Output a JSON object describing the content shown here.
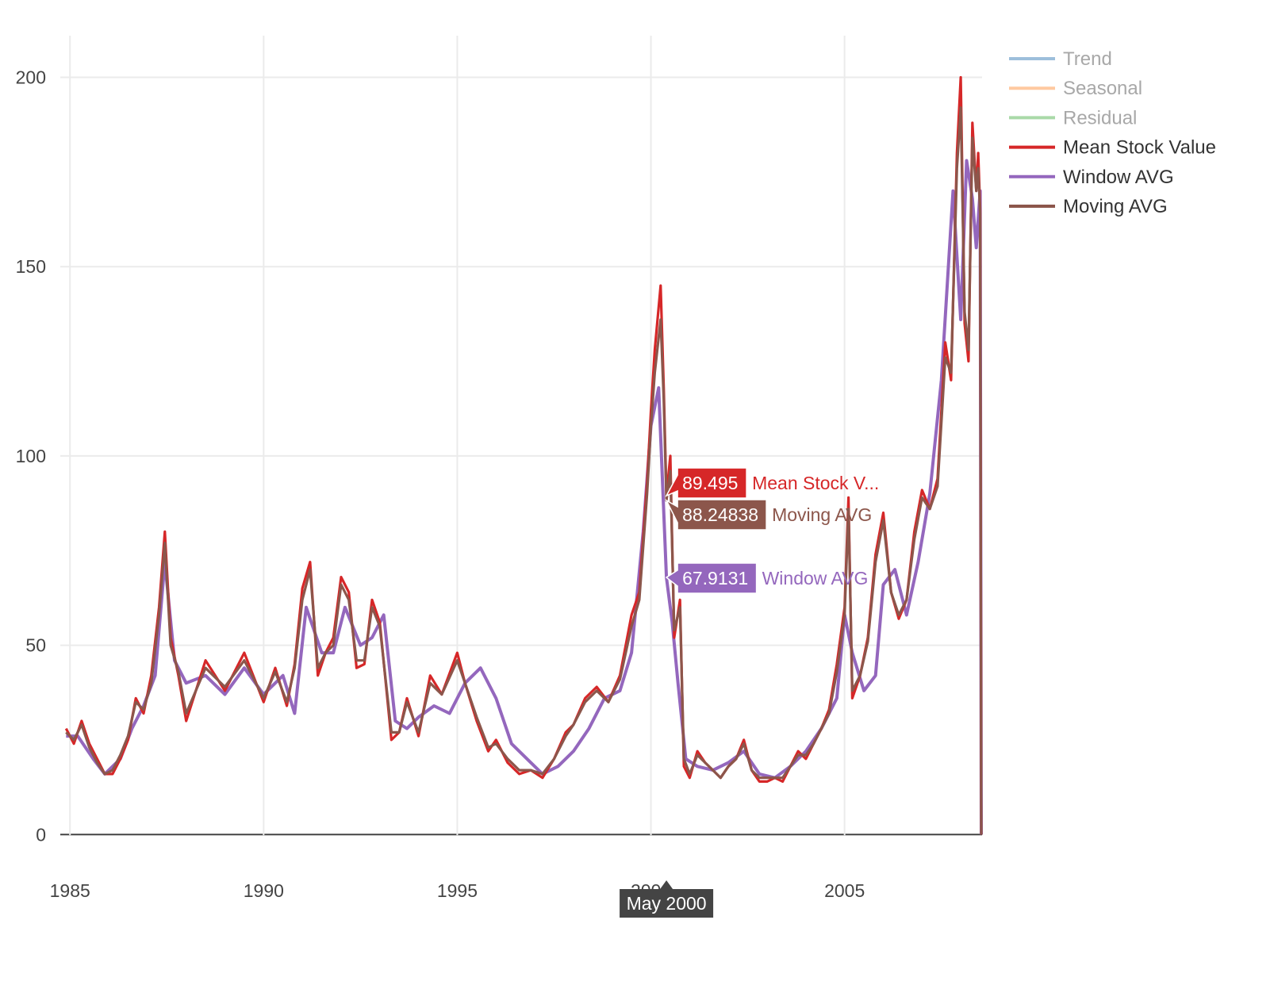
{
  "chart_data": {
    "type": "line",
    "x_ticks": [
      "1985",
      "1990",
      "1995",
      "2000",
      "2005"
    ],
    "y_ticks": [
      0,
      50,
      100,
      150,
      200
    ],
    "xlim": [
      1984.75,
      2008.55
    ],
    "ylim": [
      -10,
      211
    ],
    "grid": true,
    "legend_position": "top-right",
    "legend": [
      {
        "name": "Trend",
        "color": "#9dbfdb",
        "dimmed": true
      },
      {
        "name": "Seasonal",
        "color": "#ffc9a0",
        "dimmed": true
      },
      {
        "name": "Residual",
        "color": "#a9d9a8",
        "dimmed": true
      },
      {
        "name": "Mean Stock Value",
        "color": "#d62728",
        "dimmed": false
      },
      {
        "name": "Window AVG",
        "color": "#9467bd",
        "dimmed": false
      },
      {
        "name": "Moving AVG",
        "color": "#8c564b",
        "dimmed": false
      }
    ],
    "series": [
      {
        "name": "Mean Stock Value",
        "color": "#d62728",
        "x": [
          1984.9,
          1985.1,
          1985.3,
          1985.5,
          1985.7,
          1985.9,
          1986.1,
          1986.3,
          1986.5,
          1986.7,
          1986.9,
          1987.1,
          1987.3,
          1987.45,
          1987.6,
          1987.8,
          1988.0,
          1988.5,
          1989.0,
          1989.5,
          1990.0,
          1990.3,
          1990.6,
          1990.8,
          1991.0,
          1991.2,
          1991.4,
          1991.6,
          1991.8,
          1992.0,
          1992.2,
          1992.4,
          1992.6,
          1992.8,
          1993.0,
          1993.3,
          1993.5,
          1993.7,
          1994.0,
          1994.3,
          1994.6,
          1995.0,
          1995.2,
          1995.5,
          1995.8,
          1996.0,
          1996.3,
          1996.6,
          1996.9,
          1997.2,
          1997.5,
          1997.8,
          1998.0,
          1998.3,
          1998.6,
          1998.9,
          1999.2,
          1999.5,
          1999.7,
          1999.9,
          2000.0,
          2000.1,
          2000.25,
          2000.33,
          2000.4,
          2000.5,
          2000.6,
          2000.75,
          2000.85,
          2001.0,
          2001.2,
          2001.4,
          2001.6,
          2001.8,
          2002.0,
          2002.2,
          2002.4,
          2002.6,
          2002.8,
          2003.0,
          2003.2,
          2003.4,
          2003.6,
          2003.8,
          2004.0,
          2004.2,
          2004.4,
          2004.6,
          2004.8,
          2005.0,
          2005.1,
          2005.2,
          2005.4,
          2005.6,
          2005.8,
          2006.0,
          2006.2,
          2006.4,
          2006.6,
          2006.8,
          2007.0,
          2007.2,
          2007.4,
          2007.6,
          2007.75,
          2007.9,
          2008.0,
          2008.1,
          2008.2,
          2008.3,
          2008.4,
          2008.45,
          2008.5,
          2008.53
        ],
        "y": [
          28,
          24,
          30,
          24,
          20,
          16,
          16,
          20,
          25,
          36,
          32,
          42,
          60,
          80,
          52,
          42,
          30,
          46,
          38,
          48,
          35,
          44,
          34,
          45,
          65,
          72,
          42,
          48,
          52,
          68,
          64,
          44,
          45,
          62,
          56,
          25,
          27,
          36,
          26,
          42,
          37,
          48,
          40,
          30,
          22,
          25,
          19,
          16,
          17,
          15,
          20,
          27,
          29,
          36,
          39,
          35,
          42,
          58,
          64,
          93,
          112,
          128,
          145,
          118,
          89.5,
          100,
          52,
          62,
          18,
          15,
          22,
          19,
          17,
          15,
          18,
          20,
          25,
          17,
          14,
          14,
          15,
          14,
          18,
          22,
          20,
          24,
          28,
          33,
          45,
          60,
          89,
          36,
          42,
          52,
          74,
          85,
          64,
          57,
          62,
          80,
          91,
          86,
          94,
          130,
          120,
          180,
          200,
          135,
          125,
          188,
          170,
          180,
          165,
          0
        ]
      },
      {
        "name": "Moving AVG",
        "color": "#8c564b",
        "x": [
          1984.9,
          1985.1,
          1985.3,
          1985.5,
          1985.7,
          1985.9,
          1986.1,
          1986.3,
          1986.5,
          1986.7,
          1986.9,
          1987.1,
          1987.3,
          1987.45,
          1987.6,
          1987.8,
          1988.0,
          1988.5,
          1989.0,
          1989.5,
          1990.0,
          1990.3,
          1990.6,
          1990.8,
          1991.0,
          1991.2,
          1991.4,
          1991.6,
          1991.8,
          1992.0,
          1992.2,
          1992.4,
          1992.6,
          1992.8,
          1993.0,
          1993.3,
          1993.5,
          1993.7,
          1994.0,
          1994.3,
          1994.6,
          1995.0,
          1995.2,
          1995.5,
          1995.8,
          1996.0,
          1996.3,
          1996.6,
          1996.9,
          1997.2,
          1997.5,
          1997.8,
          1998.0,
          1998.3,
          1998.6,
          1998.9,
          1999.2,
          1999.5,
          1999.7,
          1999.9,
          2000.0,
          2000.1,
          2000.25,
          2000.33,
          2000.4,
          2000.5,
          2000.6,
          2000.75,
          2000.85,
          2001.0,
          2001.2,
          2001.4,
          2001.6,
          2001.8,
          2002.0,
          2002.2,
          2002.4,
          2002.6,
          2002.8,
          2003.0,
          2003.2,
          2003.4,
          2003.6,
          2003.8,
          2004.0,
          2004.2,
          2004.4,
          2004.6,
          2004.8,
          2005.0,
          2005.1,
          2005.2,
          2005.4,
          2005.6,
          2005.8,
          2006.0,
          2006.2,
          2006.4,
          2006.6,
          2006.8,
          2007.0,
          2007.2,
          2007.4,
          2007.6,
          2007.75,
          2007.9,
          2008.0,
          2008.1,
          2008.2,
          2008.3,
          2008.4,
          2008.45,
          2008.5,
          2008.53
        ],
        "y": [
          27,
          25,
          29,
          23,
          19,
          16,
          17,
          21,
          26,
          35,
          33,
          40,
          58,
          77,
          50,
          43,
          32,
          44,
          39,
          46,
          36,
          43,
          35,
          44,
          62,
          70,
          44,
          48,
          50,
          66,
          62,
          46,
          46,
          60,
          55,
          27,
          27,
          35,
          27,
          40,
          37,
          46,
          40,
          31,
          23,
          24,
          20,
          17,
          17,
          16,
          20,
          26,
          29,
          35,
          38,
          35,
          41,
          55,
          62,
          90,
          108,
          122,
          136,
          115,
          88.24838,
          96,
          54,
          60,
          20,
          16,
          21,
          19,
          17,
          15,
          18,
          20,
          24,
          17,
          15,
          15,
          15,
          15,
          18,
          21,
          21,
          24,
          28,
          32,
          43,
          58,
          86,
          38,
          42,
          51,
          72,
          83,
          64,
          58,
          62,
          78,
          89,
          86,
          92,
          126,
          122,
          176,
          192,
          138,
          128,
          184,
          170,
          176,
          164,
          0
        ]
      },
      {
        "name": "Window AVG",
        "color": "#9467bd",
        "x": [
          1984.9,
          1985.2,
          1985.6,
          1985.9,
          1986.3,
          1986.6,
          1986.9,
          1987.2,
          1987.45,
          1987.7,
          1988.0,
          1988.5,
          1989.0,
          1989.5,
          1990.0,
          1990.5,
          1990.8,
          1991.1,
          1991.5,
          1991.8,
          1992.1,
          1992.5,
          1992.8,
          1993.1,
          1993.4,
          1993.7,
          1994.0,
          1994.4,
          1994.8,
          1995.2,
          1995.6,
          1996.0,
          1996.4,
          1996.8,
          1997.2,
          1997.6,
          1998.0,
          1998.4,
          1998.8,
          1999.2,
          1999.5,
          1999.8,
          2000.0,
          2000.2,
          2000.4,
          2000.55,
          2000.7,
          2000.9,
          2001.2,
          2001.6,
          2002.0,
          2002.4,
          2002.8,
          2003.2,
          2003.6,
          2004.0,
          2004.4,
          2004.8,
          2005.0,
          2005.2,
          2005.5,
          2005.8,
          2006.0,
          2006.3,
          2006.6,
          2006.9,
          2007.2,
          2007.5,
          2007.8,
          2008.0,
          2008.15,
          2008.3,
          2008.4,
          2008.5,
          2008.53
        ],
        "y": [
          26,
          26,
          20,
          16,
          20,
          28,
          34,
          42,
          72,
          46,
          40,
          42,
          37,
          44,
          37,
          42,
          32,
          60,
          48,
          48,
          60,
          50,
          52,
          58,
          30,
          28,
          31,
          34,
          32,
          40,
          44,
          36,
          24,
          20,
          16,
          18,
          22,
          28,
          36,
          38,
          48,
          80,
          108,
          118,
          67.9131,
          56,
          40,
          20,
          18,
          17,
          19,
          22,
          16,
          15,
          18,
          22,
          28,
          36,
          58,
          48,
          38,
          42,
          66,
          70,
          58,
          72,
          90,
          120,
          170,
          136,
          178,
          168,
          155,
          170,
          0
        ]
      }
    ],
    "hover": {
      "x": 2000.4,
      "x_label": "May 2000",
      "labels": [
        {
          "value": "89.495",
          "name": "Mean Stock V...",
          "color": "#d62728",
          "y": 89.495
        },
        {
          "value": "88.24838",
          "name": "Moving AVG",
          "color": "#8c564b",
          "y": 88.24838
        },
        {
          "value": "67.9131",
          "name": "Window AVG",
          "color": "#9467bd",
          "y": 67.9131
        }
      ]
    }
  }
}
